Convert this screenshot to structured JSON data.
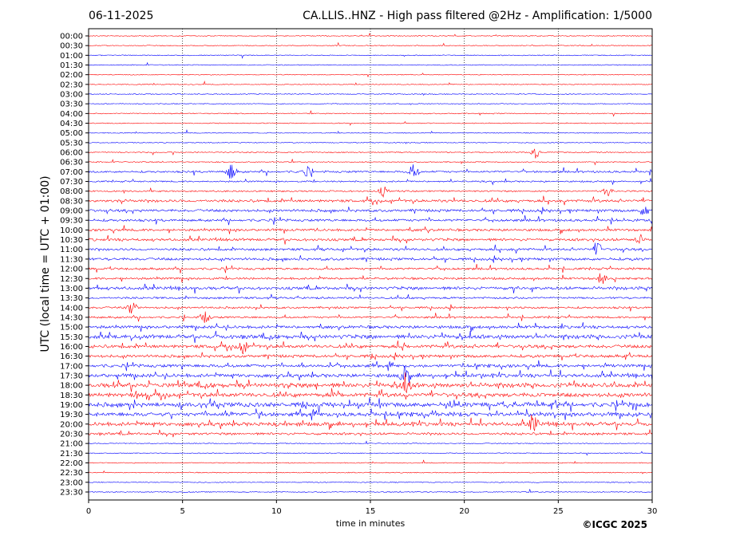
{
  "header": {
    "date": "06-11-2025",
    "title": "CA.LLIS..HNZ - High pass filtered @2Hz - Amplification: 1/5000"
  },
  "footer": {
    "copyright": "©ICGC 2025"
  },
  "chart_data": {
    "type": "line",
    "subtype": "helicorder",
    "xlabel": "time in minutes",
    "ylabel": "UTC (local time = UTC + 01:00)",
    "xlim": [
      0,
      30
    ],
    "x_ticks": [
      0,
      5,
      10,
      15,
      20,
      25,
      30
    ],
    "vertical_gridlines_at": [
      5,
      10,
      15,
      20,
      25
    ],
    "grid": "dotted vertical",
    "colors": {
      "red": "#ff0000",
      "blue": "#0000ff",
      "frame": "#000000"
    },
    "row_labels": [
      "00:00",
      "00:30",
      "01:00",
      "01:30",
      "02:00",
      "02:30",
      "03:00",
      "03:30",
      "04:00",
      "04:30",
      "05:00",
      "05:30",
      "06:00",
      "06:30",
      "07:00",
      "07:30",
      "08:00",
      "08:30",
      "09:00",
      "09:30",
      "10:00",
      "10:30",
      "11:00",
      "11:30",
      "12:00",
      "12:30",
      "13:00",
      "13:30",
      "14:00",
      "14:30",
      "15:00",
      "15:30",
      "16:00",
      "16:30",
      "17:00",
      "17:30",
      "18:00",
      "18:30",
      "19:00",
      "19:30",
      "20:00",
      "20:30",
      "21:00",
      "21:30",
      "22:00",
      "22:30",
      "23:00",
      "23:30"
    ],
    "row_colors_cycle": [
      "red",
      "red",
      "blue",
      "blue"
    ],
    "activity_level_per_row": [
      0.05,
      0.05,
      0.05,
      0.05,
      0.05,
      0.05,
      0.05,
      0.05,
      0.08,
      0.05,
      0.05,
      0.05,
      0.08,
      0.1,
      0.3,
      0.2,
      0.2,
      0.45,
      0.45,
      0.4,
      0.4,
      0.45,
      0.4,
      0.45,
      0.35,
      0.35,
      0.55,
      0.3,
      0.3,
      0.3,
      0.5,
      0.75,
      0.6,
      0.5,
      0.55,
      0.65,
      0.85,
      0.8,
      0.85,
      0.75,
      0.7,
      0.4,
      0.05,
      0.05,
      0.05,
      0.05,
      0.05,
      0.05
    ],
    "events": [
      {
        "row": "06:00",
        "minute": 23.8,
        "amplitude": 0.7
      },
      {
        "row": "07:00",
        "minute": 7.6,
        "amplitude": 1.0
      },
      {
        "row": "07:00",
        "minute": 17.3,
        "amplitude": 1.0
      },
      {
        "row": "07:00",
        "minute": 11.6,
        "amplitude": 0.6
      },
      {
        "row": "08:00",
        "minute": 27.6,
        "amplitude": 0.7
      },
      {
        "row": "08:00",
        "minute": 15.7,
        "amplitude": 0.6
      },
      {
        "row": "09:00",
        "minute": 29.6,
        "amplitude": 0.7
      },
      {
        "row": "10:30",
        "minute": 29.3,
        "amplitude": 0.6
      },
      {
        "row": "11:00",
        "minute": 27.1,
        "amplitude": 0.8
      },
      {
        "row": "12:30",
        "minute": 27.3,
        "amplitude": 0.7
      },
      {
        "row": "14:00",
        "minute": 2.3,
        "amplitude": 0.9
      },
      {
        "row": "14:30",
        "minute": 6.2,
        "amplitude": 0.8
      },
      {
        "row": "16:00",
        "minute": 8.2,
        "amplitude": 0.8
      },
      {
        "row": "17:30",
        "minute": 16.8,
        "amplitude": 1.0
      },
      {
        "row": "18:00",
        "minute": 16.9,
        "amplitude": 1.0
      },
      {
        "row": "20:00",
        "minute": 23.7,
        "amplitude": 1.0
      }
    ]
  }
}
